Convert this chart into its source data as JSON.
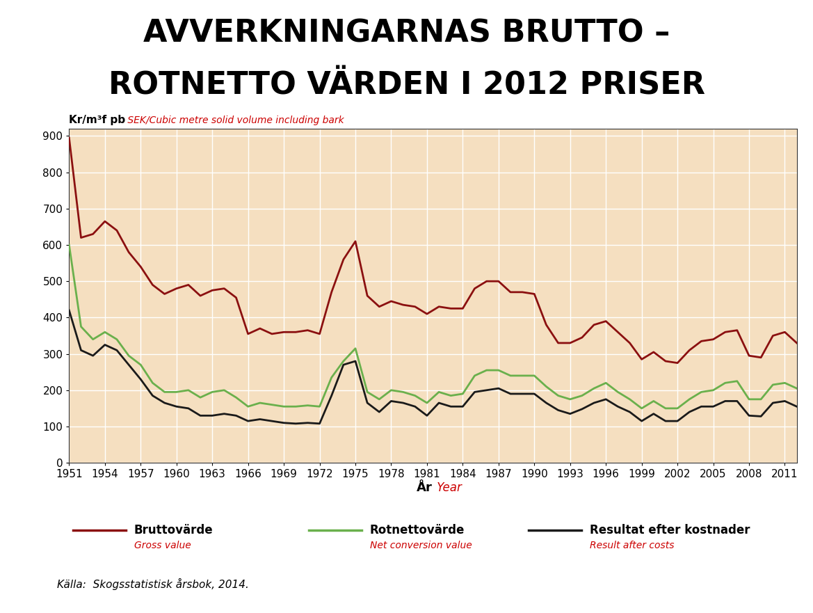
{
  "title_line1": "AVVERKNINGARNAS BRUTTO –",
  "title_line2": "ROTNETTO VÄRDEN I 2012 PRISER",
  "ylabel_black": "Kr/m³f pb",
  "ylabel_red": " SEK/Cubic metre solid volume including bark",
  "xlabel_black": "År",
  "xlabel_red": " Year",
  "source": "Källa:  Skogsstatistisk årsbok, 2014.",
  "background_color": "#f5dfc0",
  "plot_bg_color": "#f5dfc0",
  "grid_color": "#ffffff",
  "years": [
    1951,
    1952,
    1953,
    1954,
    1955,
    1956,
    1957,
    1958,
    1959,
    1960,
    1961,
    1962,
    1963,
    1964,
    1965,
    1966,
    1967,
    1968,
    1969,
    1970,
    1971,
    1972,
    1973,
    1974,
    1975,
    1976,
    1977,
    1978,
    1979,
    1980,
    1981,
    1982,
    1983,
    1984,
    1985,
    1986,
    1987,
    1988,
    1989,
    1990,
    1991,
    1992,
    1993,
    1994,
    1995,
    1996,
    1997,
    1998,
    1999,
    2000,
    2001,
    2002,
    2003,
    2004,
    2005,
    2006,
    2007,
    2008,
    2009,
    2010,
    2011,
    2012
  ],
  "bruttovarde": [
    895,
    620,
    630,
    665,
    640,
    580,
    540,
    490,
    465,
    480,
    490,
    460,
    475,
    480,
    455,
    355,
    370,
    355,
    360,
    360,
    365,
    355,
    470,
    560,
    610,
    460,
    430,
    445,
    435,
    430,
    410,
    430,
    425,
    425,
    480,
    500,
    500,
    470,
    470,
    465,
    380,
    330,
    330,
    345,
    380,
    390,
    360,
    330,
    285,
    305,
    280,
    275,
    310,
    335,
    340,
    360,
    365,
    295,
    290,
    350,
    360,
    330
  ],
  "rotnettovarde": [
    600,
    375,
    340,
    360,
    340,
    295,
    270,
    220,
    195,
    195,
    200,
    180,
    195,
    200,
    180,
    155,
    165,
    160,
    155,
    155,
    158,
    155,
    235,
    280,
    315,
    195,
    175,
    200,
    195,
    185,
    165,
    195,
    185,
    190,
    240,
    255,
    255,
    240,
    240,
    240,
    210,
    185,
    175,
    185,
    205,
    220,
    195,
    175,
    150,
    170,
    150,
    150,
    175,
    195,
    200,
    220,
    225,
    175,
    175,
    215,
    220,
    205
  ],
  "resultat": [
    420,
    310,
    295,
    325,
    310,
    270,
    230,
    185,
    165,
    155,
    150,
    130,
    130,
    135,
    130,
    115,
    120,
    115,
    110,
    108,
    110,
    108,
    185,
    270,
    280,
    165,
    140,
    170,
    165,
    155,
    130,
    165,
    155,
    155,
    195,
    200,
    205,
    190,
    190,
    190,
    165,
    145,
    135,
    148,
    165,
    175,
    155,
    140,
    115,
    135,
    115,
    115,
    140,
    155,
    155,
    170,
    170,
    130,
    128,
    165,
    170,
    155
  ],
  "ytick_labels": [
    0,
    100,
    200,
    300,
    400,
    500,
    600,
    700,
    800,
    900
  ],
  "xtick_years": [
    1951,
    1954,
    1957,
    1960,
    1963,
    1966,
    1969,
    1972,
    1975,
    1978,
    1981,
    1984,
    1987,
    1990,
    1993,
    1996,
    1999,
    2002,
    2005,
    2008,
    2011
  ],
  "ylim": [
    0,
    920
  ],
  "color_brutto": "#8b1010",
  "color_rotnetto": "#6ab04c",
  "color_resultat": "#1a1a1a",
  "legend_brutto_black": "Bruttovärde",
  "legend_brutto_red": "Gross value",
  "legend_rotnetto_black": "Rotnettovärde",
  "legend_rotnetto_red": "Net conversion value",
  "legend_resultat_black": "Resultat efter kostnader",
  "legend_resultat_red": "Result after costs"
}
